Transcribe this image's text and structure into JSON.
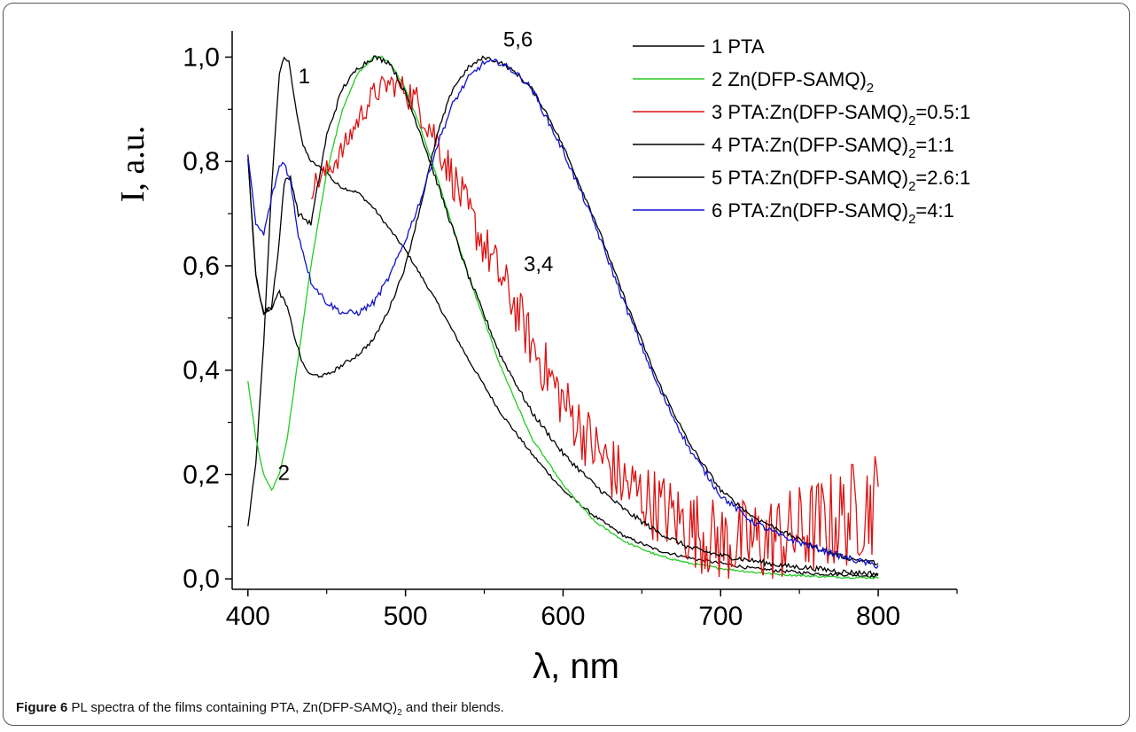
{
  "chart_data": {
    "type": "line",
    "xlabel": "λ, nm",
    "ylabel": "I, a.u.",
    "xlim": [
      390,
      850
    ],
    "ylim": [
      -0.02,
      1.05
    ],
    "xticks": [
      400,
      500,
      600,
      700,
      800
    ],
    "xtick_labels": [
      "400",
      "500",
      "600",
      "700",
      "800"
    ],
    "yticks": [
      0.0,
      0.2,
      0.4,
      0.6,
      0.8,
      1.0
    ],
    "ytick_labels": [
      "0,0",
      "0,2",
      "0,4",
      "0,6",
      "0,8",
      "1,0"
    ],
    "grid": false,
    "legend_position": "top-right",
    "series": [
      {
        "name": "1 PTA",
        "legend_main": "1 PTA",
        "legend_sub": "",
        "legend_tail": "",
        "color": "#000000",
        "noise": 0.003,
        "x": [
          400,
          405,
          410,
          415,
          420,
          423,
          426,
          430,
          435,
          440,
          445,
          450,
          455,
          460,
          470,
          480,
          490,
          500,
          520,
          540,
          560,
          580,
          600,
          620,
          640,
          660,
          680,
          700,
          720,
          740,
          760,
          780,
          800
        ],
        "y": [
          0.1,
          0.22,
          0.45,
          0.75,
          0.97,
          1.0,
          0.99,
          0.91,
          0.83,
          0.8,
          0.79,
          0.78,
          0.76,
          0.75,
          0.74,
          0.71,
          0.67,
          0.63,
          0.53,
          0.42,
          0.32,
          0.24,
          0.17,
          0.12,
          0.08,
          0.055,
          0.04,
          0.03,
          0.02,
          0.015,
          0.01,
          0.008,
          0.005
        ]
      },
      {
        "name": "2 Zn(DFP-SAMQ)2",
        "legend_main": "2 Zn(DFP-SAMQ)",
        "legend_sub": "2",
        "legend_tail": "",
        "color": "#22cc22",
        "noise": 0.002,
        "x": [
          400,
          405,
          410,
          415,
          420,
          425,
          430,
          440,
          450,
          460,
          470,
          480,
          485,
          490,
          500,
          510,
          520,
          540,
          560,
          580,
          600,
          620,
          640,
          660,
          680,
          700,
          720,
          740,
          760,
          780,
          800
        ],
        "y": [
          0.38,
          0.27,
          0.2,
          0.17,
          0.2,
          0.27,
          0.38,
          0.6,
          0.78,
          0.9,
          0.97,
          1.0,
          1.0,
          0.99,
          0.94,
          0.86,
          0.77,
          0.58,
          0.41,
          0.27,
          0.18,
          0.11,
          0.07,
          0.045,
          0.03,
          0.02,
          0.013,
          0.008,
          0.005,
          0.003,
          0.002
        ]
      },
      {
        "name": "3 PTA:Zn(DFP-SAMQ)2=0.5:1",
        "legend_main": "3 PTA:Zn(DFP-SAMQ)",
        "legend_sub": "2",
        "legend_tail": "=0.5:1",
        "color": "#dd1111",
        "noise": 0.035,
        "x": [
          440,
          450,
          460,
          470,
          480,
          490,
          500,
          510,
          520,
          530,
          540,
          550,
          560,
          570,
          580,
          600,
          620,
          640,
          660,
          680,
          700,
          720,
          740,
          760,
          780,
          790,
          800
        ],
        "y": [
          0.75,
          0.78,
          0.82,
          0.88,
          0.93,
          0.95,
          0.94,
          0.9,
          0.84,
          0.77,
          0.7,
          0.64,
          0.58,
          0.52,
          0.45,
          0.34,
          0.25,
          0.18,
          0.14,
          0.1,
          0.07,
          0.07,
          0.08,
          0.1,
          0.12,
          0.14,
          0.15
        ]
      },
      {
        "name": "4 PTA:Zn(DFP-SAMQ)2=1:1",
        "legend_main": "4 PTA:Zn(DFP-SAMQ)",
        "legend_sub": "2",
        "legend_tail": "=1:1",
        "color": "#000000",
        "noise": 0.005,
        "x": [
          400,
          405,
          410,
          415,
          420,
          423,
          427,
          432,
          440,
          450,
          460,
          470,
          480,
          490,
          500,
          510,
          520,
          540,
          560,
          580,
          600,
          620,
          640,
          660,
          680,
          700,
          720,
          740,
          760,
          780,
          800
        ],
        "y": [
          0.81,
          0.58,
          0.51,
          0.52,
          0.65,
          0.76,
          0.77,
          0.7,
          0.68,
          0.85,
          0.94,
          0.98,
          1.0,
          0.99,
          0.93,
          0.85,
          0.76,
          0.58,
          0.43,
          0.32,
          0.24,
          0.18,
          0.13,
          0.09,
          0.06,
          0.045,
          0.035,
          0.025,
          0.02,
          0.013,
          0.01
        ]
      },
      {
        "name": "5 PTA:Zn(DFP-SAMQ)2=2.6:1",
        "legend_main": "5 PTA:Zn(DFP-SAMQ)",
        "legend_sub": "2",
        "legend_tail": "=2.6:1",
        "color": "#000000",
        "noise": 0.004,
        "x": [
          400,
          405,
          410,
          415,
          420,
          425,
          430,
          435,
          440,
          450,
          460,
          470,
          480,
          490,
          500,
          510,
          520,
          530,
          540,
          550,
          560,
          570,
          580,
          590,
          600,
          620,
          640,
          660,
          680,
          700,
          720,
          740,
          760,
          780,
          800
        ],
        "y": [
          0.81,
          0.58,
          0.51,
          0.52,
          0.55,
          0.52,
          0.46,
          0.41,
          0.39,
          0.39,
          0.41,
          0.43,
          0.46,
          0.52,
          0.6,
          0.72,
          0.85,
          0.94,
          0.98,
          1.0,
          0.99,
          0.97,
          0.94,
          0.89,
          0.83,
          0.69,
          0.53,
          0.38,
          0.26,
          0.17,
          0.12,
          0.09,
          0.06,
          0.04,
          0.03
        ]
      },
      {
        "name": "6 PTA:Zn(DFP-SAMQ)2=4:1",
        "legend_main": "6 PTA:Zn(DFP-SAMQ)",
        "legend_sub": "2",
        "legend_tail": "=4:1",
        "color": "#1111cc",
        "noise": 0.006,
        "x": [
          400,
          405,
          410,
          415,
          420,
          423,
          427,
          432,
          440,
          450,
          460,
          470,
          480,
          490,
          500,
          510,
          520,
          530,
          540,
          550,
          560,
          570,
          580,
          590,
          600,
          620,
          640,
          660,
          680,
          700,
          720,
          740,
          760,
          780,
          800
        ],
        "y": [
          0.81,
          0.68,
          0.66,
          0.73,
          0.79,
          0.8,
          0.76,
          0.66,
          0.57,
          0.53,
          0.51,
          0.51,
          0.53,
          0.58,
          0.65,
          0.73,
          0.83,
          0.91,
          0.96,
          0.99,
          0.99,
          0.97,
          0.94,
          0.88,
          0.82,
          0.68,
          0.52,
          0.37,
          0.25,
          0.16,
          0.11,
          0.08,
          0.06,
          0.04,
          0.025
        ]
      }
    ],
    "annotations": [
      {
        "text": "1",
        "x": 432,
        "y": 0.95
      },
      {
        "text": "5,6",
        "x": 562,
        "y": 1.02
      },
      {
        "text": "3,4",
        "x": 575,
        "y": 0.59
      },
      {
        "text": "2",
        "x": 419,
        "y": 0.19
      }
    ]
  },
  "caption": {
    "figure_label": "Figure 6",
    "text_before": "PL spectra of the films containing PTA, Zn(DFP-SAMQ)",
    "sub": "2",
    "text_after": "and their blends."
  }
}
